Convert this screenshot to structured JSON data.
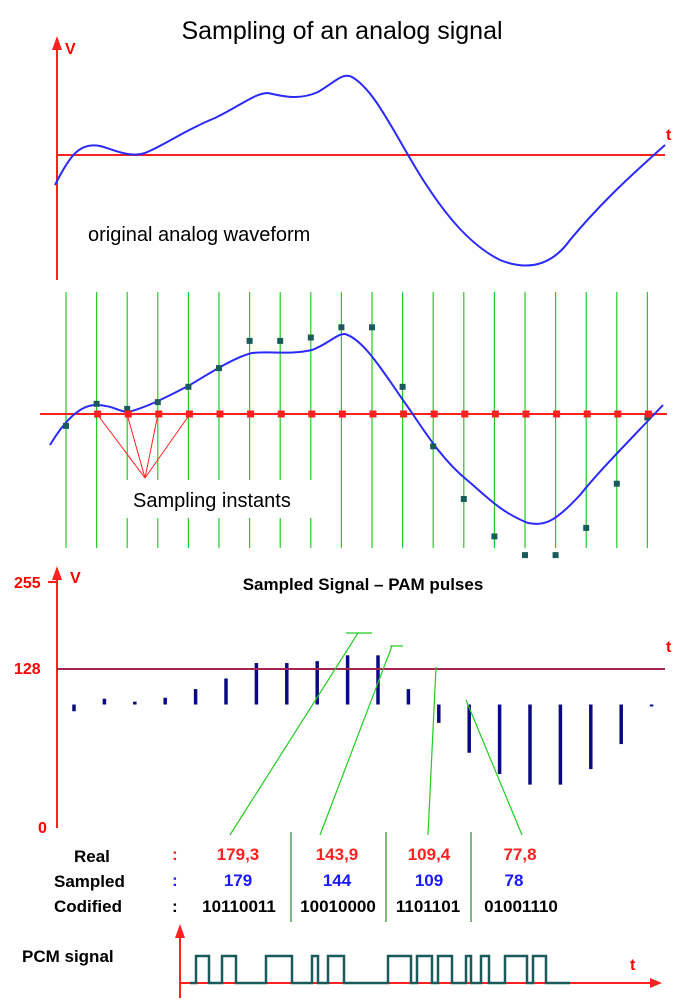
{
  "section1": {
    "title": "Sampling of an analog signal",
    "y_axis": "V",
    "x_axis": "t",
    "caption": "original analog waveform"
  },
  "section2": {
    "caption": "Sampling instants"
  },
  "section3": {
    "title": "Sampled Signal – PAM pulses",
    "y_axis": "V",
    "x_axis": "t",
    "y_ticks": [
      "255",
      "128",
      "0"
    ]
  },
  "table": {
    "row_labels": [
      "Real",
      "Sampled",
      "Codified"
    ],
    "colon": ":",
    "real": [
      "179,3",
      "143,9",
      "109,4",
      "77,8"
    ],
    "sampled": [
      "179",
      "144",
      "109",
      "78"
    ],
    "codified": [
      "10110011",
      "10010000",
      "1101101",
      "01001110"
    ]
  },
  "pcm": {
    "label": "PCM signal",
    "x_axis": "t"
  },
  "colors": {
    "axis": "#ff2020",
    "waveform": "#2a2aff",
    "sampling_lines": "#22cc22",
    "pulses": "#0a0a80",
    "sample_points": "#1a5a5a",
    "pcm_signal": "#1a5a5a"
  },
  "chart_data": {
    "type": "bar",
    "title": "Sampled Signal – PAM pulses",
    "ylabel": "V",
    "xlabel": "t",
    "ylim": [
      0,
      255
    ],
    "baseline": 128,
    "values": [
      121,
      134,
      131,
      135,
      144,
      155,
      171,
      171,
      173,
      179,
      179,
      144,
      109,
      78,
      56,
      45,
      45,
      61,
      87,
      126
    ]
  }
}
